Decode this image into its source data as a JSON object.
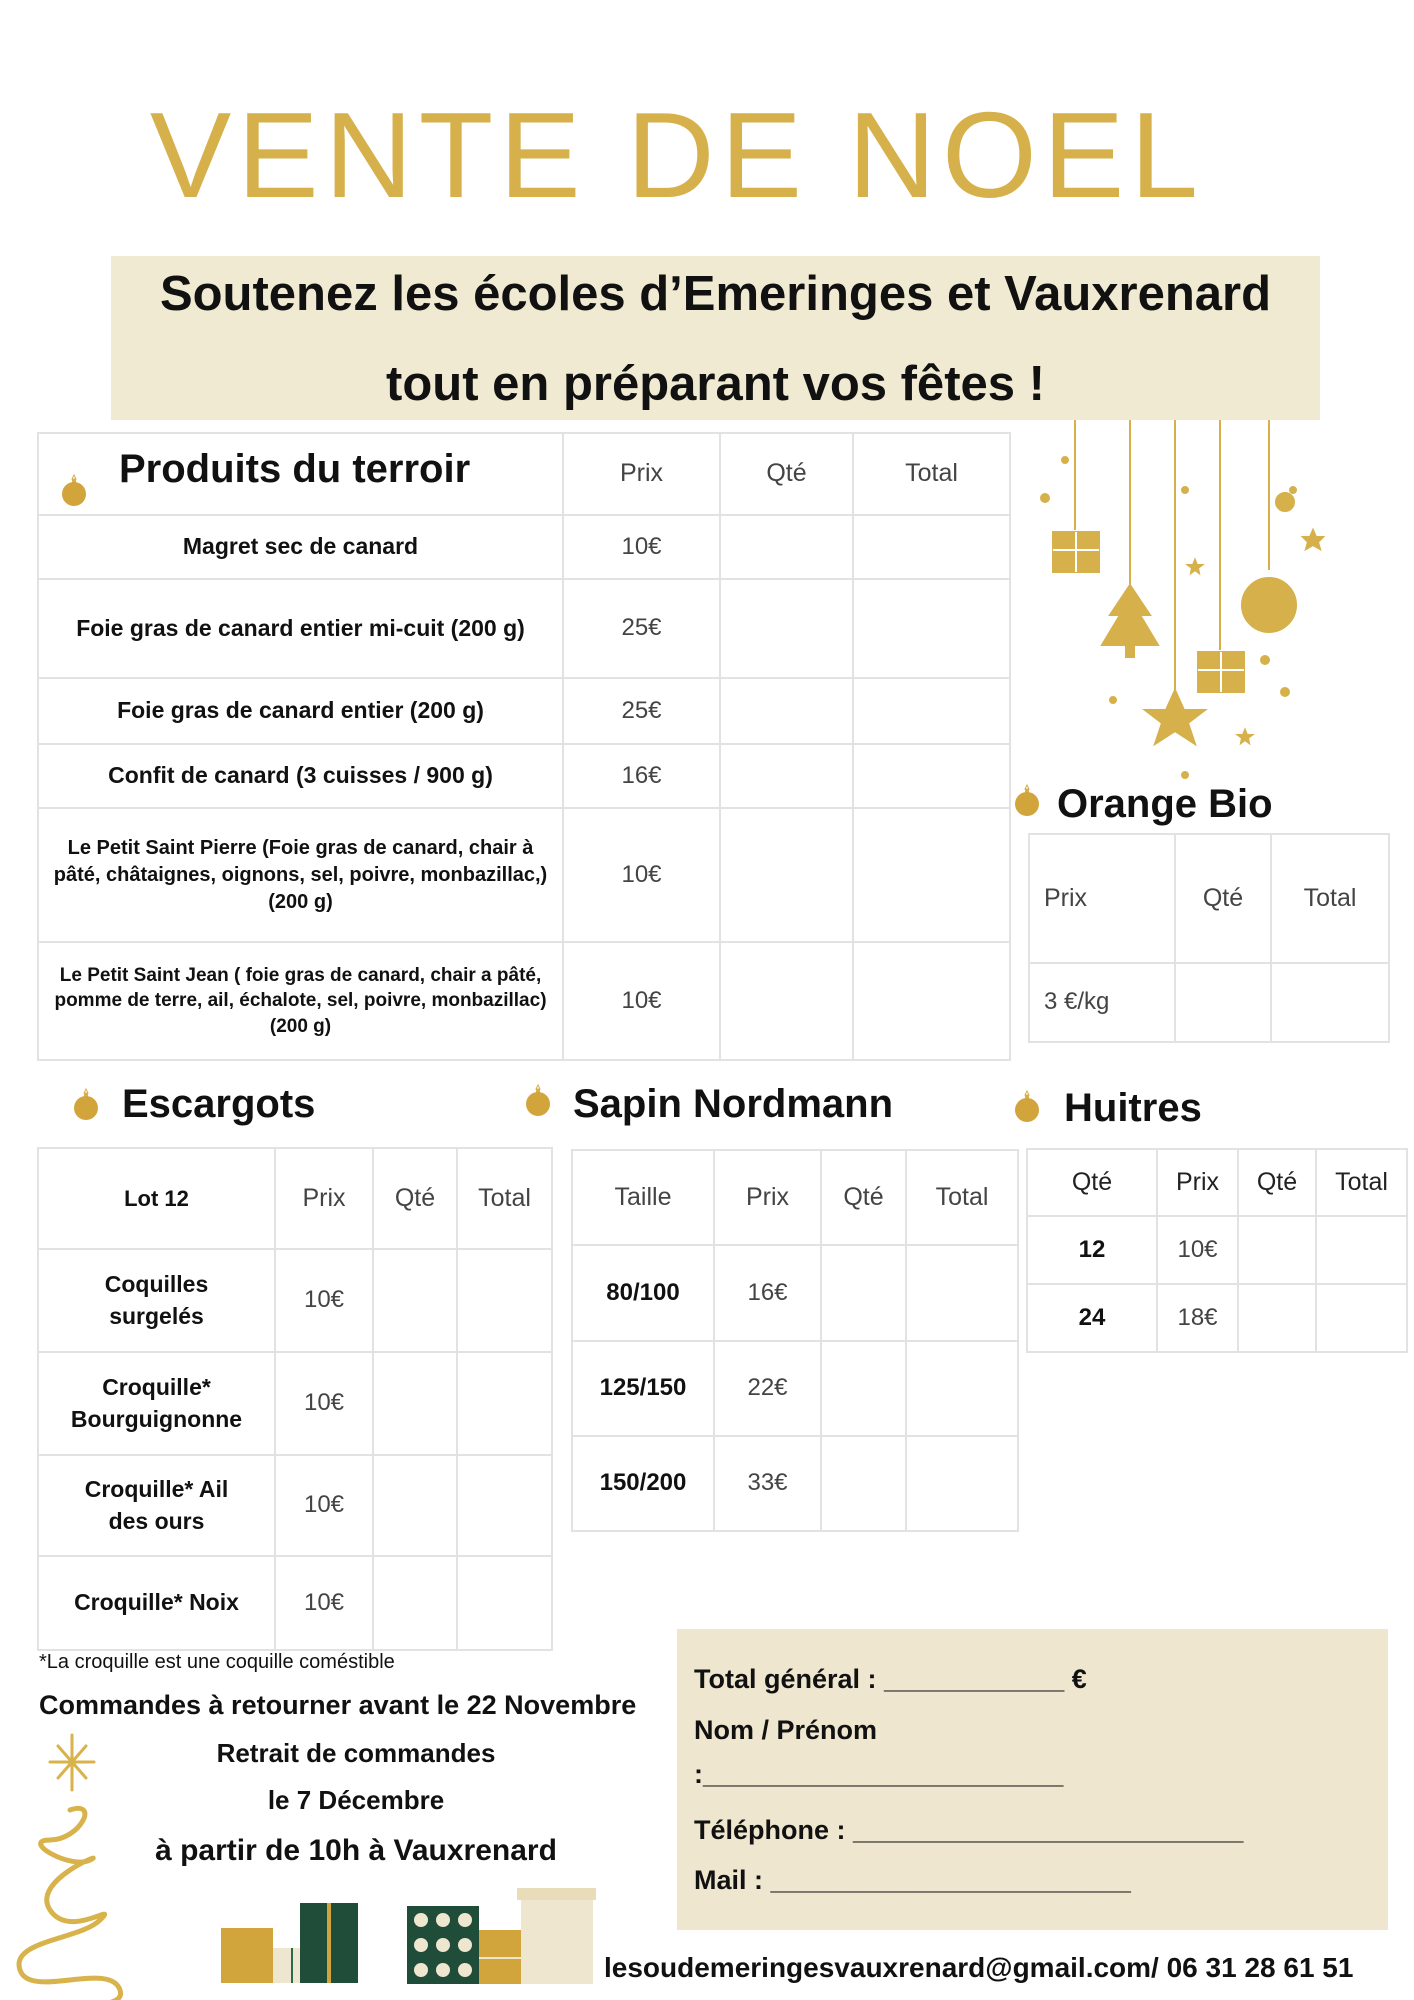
{
  "title": "VENTE DE NOEL",
  "banner": {
    "line1": "Soutenez les écoles d’Emeringes et Vauxrenard",
    "line2": "tout en préparant vos fêtes !"
  },
  "colors": {
    "gold": "#d6b04a",
    "beige": "#f1ead2",
    "green": "#1f4d3a"
  },
  "terroir": {
    "heading": "Produits du terroir",
    "columns": [
      "Prix",
      "Qté",
      "Total"
    ],
    "rows": [
      {
        "name": "Magret sec de canard",
        "price": "10€"
      },
      {
        "name": "Foie gras de canard entier mi-cuit (200 g)",
        "price": "25€"
      },
      {
        "name": "Foie gras de canard entier (200 g)",
        "price": "25€"
      },
      {
        "name": "Confit de canard (3 cuisses / 900 g)",
        "price": "16€"
      },
      {
        "name": "Le Petit Saint Pierre (Foie gras de canard, chair à pâté, châtaignes, oignons, sel, poivre, monbazillac,) (200 g)",
        "price": "10€"
      },
      {
        "name": "Le Petit Saint Jean ( foie gras de canard, chair a pâté, pomme de terre, ail, échalote, sel, poivre, monbazillac) (200 g)",
        "price": "10€"
      }
    ]
  },
  "orange": {
    "heading": "Orange Bio",
    "columns": [
      "Prix",
      "Qté",
      "Total"
    ],
    "price": "3 €/kg"
  },
  "escargots": {
    "heading": "Escargots",
    "columns": [
      "Lot 12",
      "Prix",
      "Qté",
      "Total"
    ],
    "rows": [
      {
        "name": "Coquilles surgelés",
        "price": "10€"
      },
      {
        "name": "Croquille* Bourguignonne",
        "price": "10€"
      },
      {
        "name": "Croquille* Ail des ours",
        "price": "10€"
      },
      {
        "name": "Croquille* Noix",
        "price": "10€"
      }
    ],
    "footnote": "*La croquille est une coquille coméstible"
  },
  "sapin": {
    "heading": "Sapin Nordmann",
    "columns": [
      "Taille",
      "Prix",
      "Qté",
      "Total"
    ],
    "rows": [
      {
        "size": "80/100",
        "price": "16€"
      },
      {
        "size": "125/150",
        "price": "22€"
      },
      {
        "size": "150/200",
        "price": "33€"
      }
    ]
  },
  "huitres": {
    "heading": "Huitres",
    "columns": [
      "Qté",
      "Prix",
      "Qté",
      "Total"
    ],
    "rows": [
      {
        "qty": "12",
        "price": "10€"
      },
      {
        "qty": "24",
        "price": "18€"
      }
    ]
  },
  "info": {
    "deadline": "Commandes à retourner avant le 22 Novembre",
    "pickup1": "Retrait de commandes",
    "pickup2": "le 7 Décembre",
    "pickup3": "à partir de 10h à Vauxrenard"
  },
  "form": {
    "total": "Total général : ____________ €",
    "name": "Nom / Prénom",
    "name_line": ":________________________",
    "phone": "Téléphone : __________________________",
    "mail": "Mail : ________________________"
  },
  "contact": "lesoudemeringesvauxrenard@gmail.com/ 06 31 28 61 51"
}
